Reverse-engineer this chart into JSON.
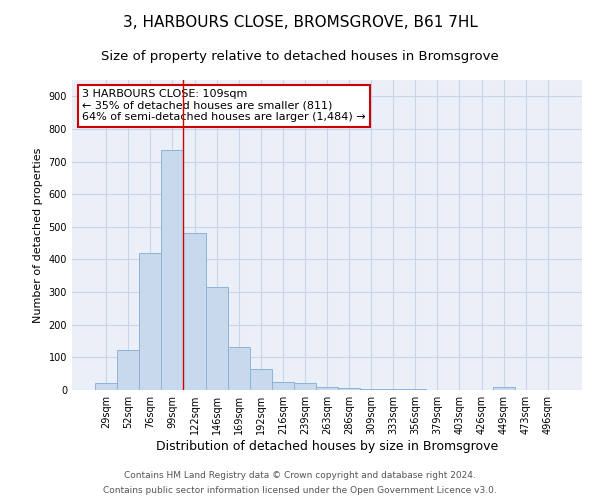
{
  "title": "3, HARBOURS CLOSE, BROMSGROVE, B61 7HL",
  "subtitle": "Size of property relative to detached houses in Bromsgrove",
  "xlabel": "Distribution of detached houses by size in Bromsgrove",
  "ylabel": "Number of detached properties",
  "bar_color": "#c8d9ee",
  "bar_edgecolor": "#8ab4d8",
  "bar_linewidth": 0.7,
  "grid_color": "#c8d4e8",
  "bg_color": "#eaeff8",
  "categories": [
    "29sqm",
    "52sqm",
    "76sqm",
    "99sqm",
    "122sqm",
    "146sqm",
    "169sqm",
    "192sqm",
    "216sqm",
    "239sqm",
    "263sqm",
    "286sqm",
    "309sqm",
    "333sqm",
    "356sqm",
    "379sqm",
    "403sqm",
    "426sqm",
    "449sqm",
    "473sqm",
    "496sqm"
  ],
  "values": [
    20,
    122,
    420,
    735,
    480,
    315,
    132,
    65,
    25,
    22,
    10,
    7,
    4,
    4,
    4,
    0,
    0,
    0,
    8,
    0,
    0
  ],
  "ylim": [
    0,
    950
  ],
  "yticks": [
    0,
    100,
    200,
    300,
    400,
    500,
    600,
    700,
    800,
    900
  ],
  "vline_x": 3.5,
  "vline_color": "#cc0000",
  "annotation_text": "3 HARBOURS CLOSE: 109sqm\n← 35% of detached houses are smaller (811)\n64% of semi-detached houses are larger (1,484) →",
  "annotation_box_edgecolor": "#cc0000",
  "annotation_box_facecolor": "white",
  "footer1": "Contains HM Land Registry data © Crown copyright and database right 2024.",
  "footer2": "Contains public sector information licensed under the Open Government Licence v3.0.",
  "title_fontsize": 11,
  "subtitle_fontsize": 9.5,
  "xlabel_fontsize": 9,
  "ylabel_fontsize": 8,
  "tick_fontsize": 7,
  "annotation_fontsize": 8,
  "footer_fontsize": 6.5
}
